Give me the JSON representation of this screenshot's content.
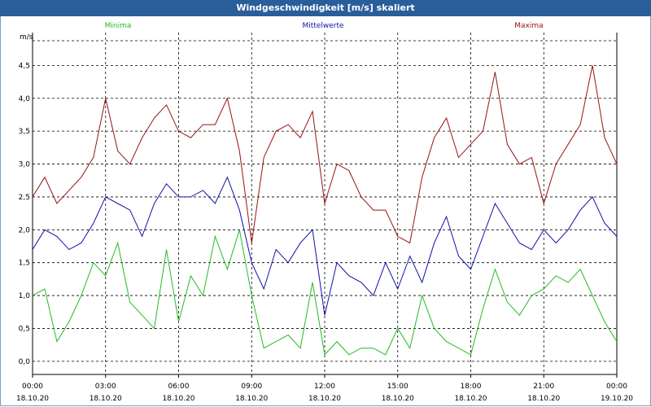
{
  "chart_data": {
    "type": "line",
    "title": "Windgeschwindigkeit [m/s] skaliert",
    "ylabel": "m/s",
    "ylim": [
      -0.2,
      5.0
    ],
    "yticks": [
      "0,0",
      "0,5",
      "1,0",
      "1,5",
      "2,0",
      "2,5",
      "3,0",
      "3,5",
      "4,0",
      "4,5"
    ],
    "yticks_values": [
      0,
      0.5,
      1.0,
      1.5,
      2.0,
      2.5,
      3.0,
      3.5,
      4.0,
      4.5
    ],
    "xticks": [
      {
        "time": "00:00",
        "date": "18.10.20"
      },
      {
        "time": "03:00",
        "date": "18.10.20"
      },
      {
        "time": "06:00",
        "date": "18.10.20"
      },
      {
        "time": "09:00",
        "date": "18.10.20"
      },
      {
        "time": "12:00",
        "date": "18.10.20"
      },
      {
        "time": "15:00",
        "date": "18.10.20"
      },
      {
        "time": "18:00",
        "date": "18.10.20"
      },
      {
        "time": "21:00",
        "date": "18.10.20"
      },
      {
        "time": "00:00",
        "date": "19.10.20"
      }
    ],
    "x_hours": [
      0,
      0.5,
      1,
      1.5,
      2,
      2.5,
      3,
      3.5,
      4,
      4.5,
      5,
      5.5,
      6,
      6.5,
      7,
      7.5,
      8,
      8.5,
      9,
      9.5,
      10,
      10.5,
      11,
      11.5,
      12,
      12.5,
      13,
      13.5,
      14,
      14.5,
      15,
      15.5,
      16,
      16.5,
      17,
      17.5,
      18,
      18.5,
      19,
      19.5,
      20,
      20.5,
      21,
      21.5,
      22,
      22.5,
      23,
      23.5,
      24
    ],
    "grid": true,
    "colors": {
      "minima": "#22bb22",
      "mittelwerte": "#1010aa",
      "maxima": "#991111"
    },
    "series": [
      {
        "name": "Minima",
        "key": "minima",
        "values": [
          1.0,
          1.1,
          0.3,
          0.6,
          1.0,
          1.5,
          1.3,
          1.8,
          0.9,
          0.7,
          0.5,
          1.7,
          0.6,
          1.3,
          1.0,
          1.9,
          1.4,
          2.0,
          1.0,
          0.2,
          0.3,
          0.4,
          0.2,
          1.2,
          0.1,
          0.3,
          0.1,
          0.2,
          0.2,
          0.1,
          0.5,
          0.2,
          1.0,
          0.5,
          0.3,
          0.2,
          0.1,
          0.8,
          1.4,
          0.9,
          0.7,
          1.0,
          1.1,
          1.3,
          1.2,
          1.4,
          1.0,
          0.6,
          0.3
        ]
      },
      {
        "name": "Mittelwerte",
        "key": "mittelwerte",
        "values": [
          1.7,
          2.0,
          1.9,
          1.7,
          1.8,
          2.1,
          2.5,
          2.4,
          2.3,
          1.9,
          2.4,
          2.7,
          2.5,
          2.5,
          2.6,
          2.4,
          2.8,
          2.3,
          1.5,
          1.1,
          1.7,
          1.5,
          1.8,
          2.0,
          0.7,
          1.5,
          1.3,
          1.2,
          1.0,
          1.5,
          1.1,
          1.6,
          1.2,
          1.8,
          2.2,
          1.6,
          1.4,
          1.9,
          2.4,
          2.1,
          1.8,
          1.7,
          2.0,
          1.8,
          2.0,
          2.3,
          2.5,
          2.1,
          1.9
        ]
      },
      {
        "name": "Maxima",
        "key": "maxima",
        "values": [
          2.5,
          2.8,
          2.4,
          2.6,
          2.8,
          3.1,
          4.0,
          3.2,
          3.0,
          3.4,
          3.7,
          3.9,
          3.5,
          3.4,
          3.6,
          3.6,
          4.0,
          3.2,
          1.8,
          3.1,
          3.5,
          3.6,
          3.4,
          3.8,
          2.4,
          3.0,
          2.9,
          2.5,
          2.3,
          2.3,
          1.9,
          1.8,
          2.8,
          3.4,
          3.7,
          3.1,
          3.3,
          3.5,
          4.4,
          3.3,
          3.0,
          3.1,
          2.4,
          3.0,
          3.3,
          3.6,
          4.5,
          3.4,
          3.0
        ]
      }
    ]
  }
}
